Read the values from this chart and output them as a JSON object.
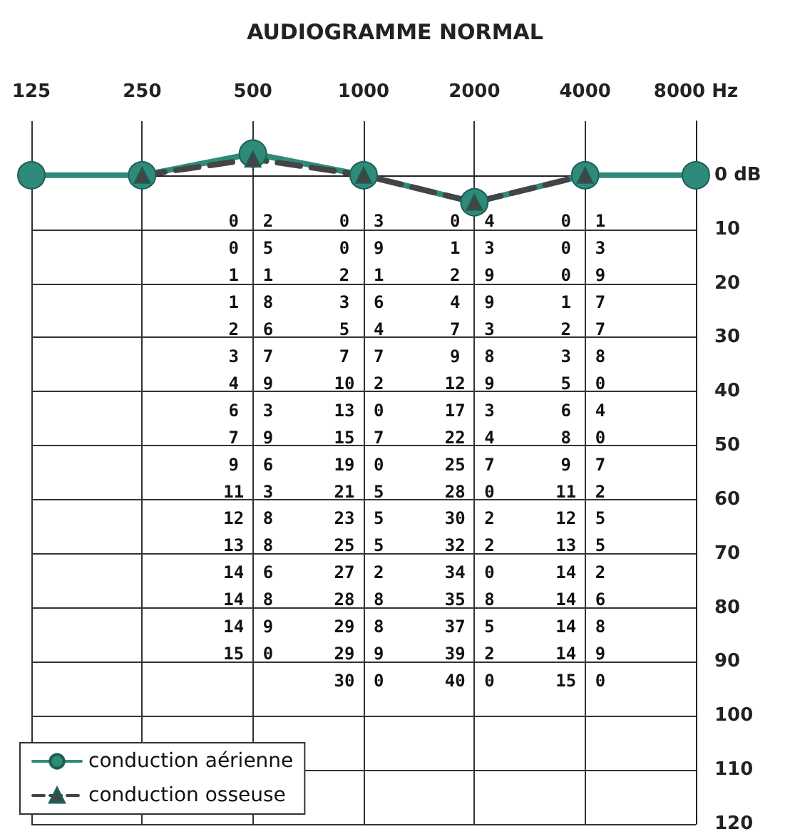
{
  "chart_data": {
    "type": "line",
    "title": "AUDIOGRAMME NORMAL",
    "categories": [
      "125",
      "250",
      "500",
      "1000",
      "2000",
      "4000",
      "8000 Hz"
    ],
    "series": [
      {
        "name": "conduction aérienne",
        "color": "#2e8b7a",
        "values": [
          0,
          0,
          -4,
          0,
          5,
          0,
          0
        ],
        "marker": "circle",
        "line_style": "solid"
      },
      {
        "name": "conduction osseuse",
        "color": "#444444",
        "values": [
          null,
          0,
          -3,
          0,
          5,
          0,
          null
        ],
        "marker": "triangle",
        "line_style": "dashed"
      }
    ],
    "ylim": [
      120,
      -10
    ],
    "yticks": [
      {
        "value": 0,
        "label": "0 dB"
      },
      10,
      20,
      30,
      40,
      50,
      60,
      70,
      80,
      90,
      100,
      110,
      120
    ],
    "grid": true,
    "legend": "bottom left",
    "annotations": [
      "0 2\n0 5\n1 1\n1 8\n2 6\n3 7\n4 9\n6 3\n7 9\n9 6\n11 3\n12 8\n13 8\n14 6\n14 8\n14 9\n15 0",
      "0 3\n0 9\n2 1\n3 6\n5 4\n7 7\n10 2\n13 0\n15 7\n19 0\n21 5\n23 5\n25 5\n27 2\n28 8\n29 8\n29 9\n30 0",
      "0 4\n1 3\n2 9\n4 9\n7 3\n9 8\n12 9\n17 3\n22 4\n25 7\n28 0\n30 2\n32 2\n34 0\n35 8\n37 5\n39 2\n40 0",
      "0 1\n0 3\n0 9\n1 7\n2 7\n3 8\n5 0\n6 4\n8 0\n9 7\n11 2\n12 5\n13 5\n14 2\n14 6\n14 8\n14 9\n15 0"
    ]
  }
}
